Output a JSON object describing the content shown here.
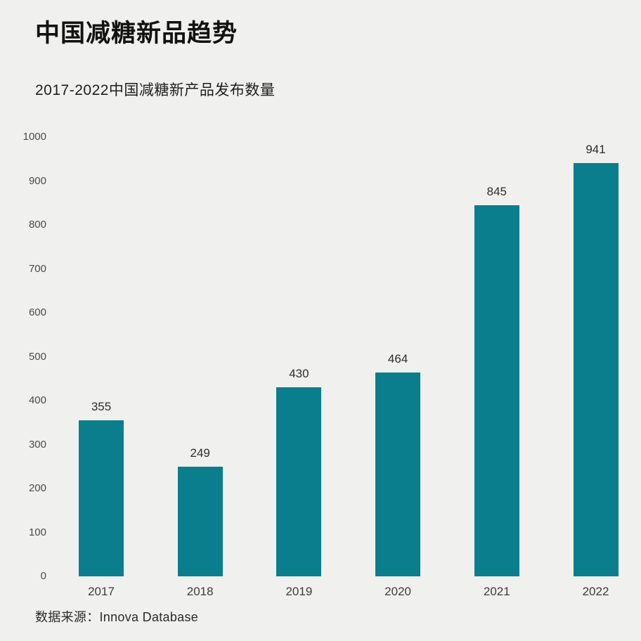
{
  "page": {
    "background_color": "#f0f0ee"
  },
  "chart_data": {
    "type": "bar",
    "title": "中国减糖新品趋势",
    "subtitle": "2017-2022中国减糖新产品发布数量",
    "categories": [
      "2017",
      "2018",
      "2019",
      "2020",
      "2021",
      "2022"
    ],
    "values": [
      355,
      249,
      430,
      464,
      845,
      941
    ],
    "value_labels_shown": true,
    "xlabel": "",
    "ylabel": "",
    "ylim": [
      0,
      1000
    ],
    "ytick_step": 100,
    "yticks": [
      0,
      100,
      200,
      300,
      400,
      500,
      600,
      700,
      800,
      900,
      1000
    ],
    "grid": false,
    "legend": false,
    "bar_color": "#0a7e8c",
    "source": "数据来源：Innova Database"
  }
}
